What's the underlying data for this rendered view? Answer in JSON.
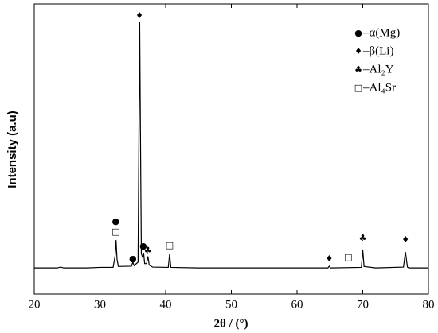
{
  "chart_data": {
    "type": "line",
    "xlabel": "2θ / (°)",
    "ylabel": "Intensity (a.u)",
    "x": [
      20,
      23.5,
      24,
      24.5,
      28,
      30,
      32,
      32.3,
      32.45,
      32.6,
      32.8,
      34.8,
      35.0,
      35.2,
      35.8,
      35.95,
      36.05,
      36.15,
      36.3,
      36.5,
      36.65,
      36.8,
      37.1,
      37.3,
      37.5,
      38,
      40.4,
      40.6,
      40.8,
      45,
      50,
      55,
      60,
      64.7,
      64.9,
      65.1,
      69.8,
      70.0,
      70.2,
      72,
      76.2,
      76.5,
      76.8,
      77,
      80
    ],
    "series": [
      {
        "color": "#000000",
        "values": [
          9,
          9,
          9.3,
          9,
          9,
          9.2,
          9.2,
          13,
          18.6,
          12,
          9.5,
          9.6,
          11,
          9.8,
          11,
          60,
          93.7,
          60,
          14,
          12.5,
          14.2,
          10.5,
          10.5,
          13,
          10,
          9.3,
          9.2,
          13.7,
          9.2,
          9,
          9,
          9,
          9,
          9,
          9.6,
          9,
          9.2,
          15.3,
          9.5,
          9,
          9.3,
          14.5,
          9.3,
          9,
          9
        ]
      }
    ],
    "xlim": [
      20,
      80
    ],
    "xticks": [
      20,
      30,
      40,
      50,
      60,
      70,
      80
    ],
    "ylim": [
      0,
      100
    ],
    "annotations": [
      {
        "text": "●",
        "x": 32.4,
        "y": 24.9
      },
      {
        "text": "□",
        "x": 32.4,
        "y": 21.4
      },
      {
        "text": "●",
        "x": 35.0,
        "y": 12
      },
      {
        "text": "♦",
        "x": 36.0,
        "y": 95.9
      },
      {
        "text": "●",
        "x": 36.6,
        "y": 16.4
      },
      {
        "text": "♣",
        "x": 37.3,
        "y": 15
      },
      {
        "text": "□",
        "x": 40.6,
        "y": 16.7
      },
      {
        "text": "♦",
        "x": 64.9,
        "y": 12
      },
      {
        "text": "□",
        "x": 67.8,
        "y": 12.6
      },
      {
        "text": "♣",
        "x": 70.0,
        "y": 19.2
      },
      {
        "text": "♦",
        "x": 76.5,
        "y": 18.6
      }
    ],
    "legend": [
      {
        "symbol": "●",
        "label": "–α(Mg)"
      },
      {
        "symbol": "♦",
        "label": "–β(Li)"
      },
      {
        "symbol": "♣",
        "label": "–Al₂Y"
      },
      {
        "symbol": "□",
        "label": "–Al₄Sr"
      }
    ],
    "legend_position": "upper right"
  }
}
